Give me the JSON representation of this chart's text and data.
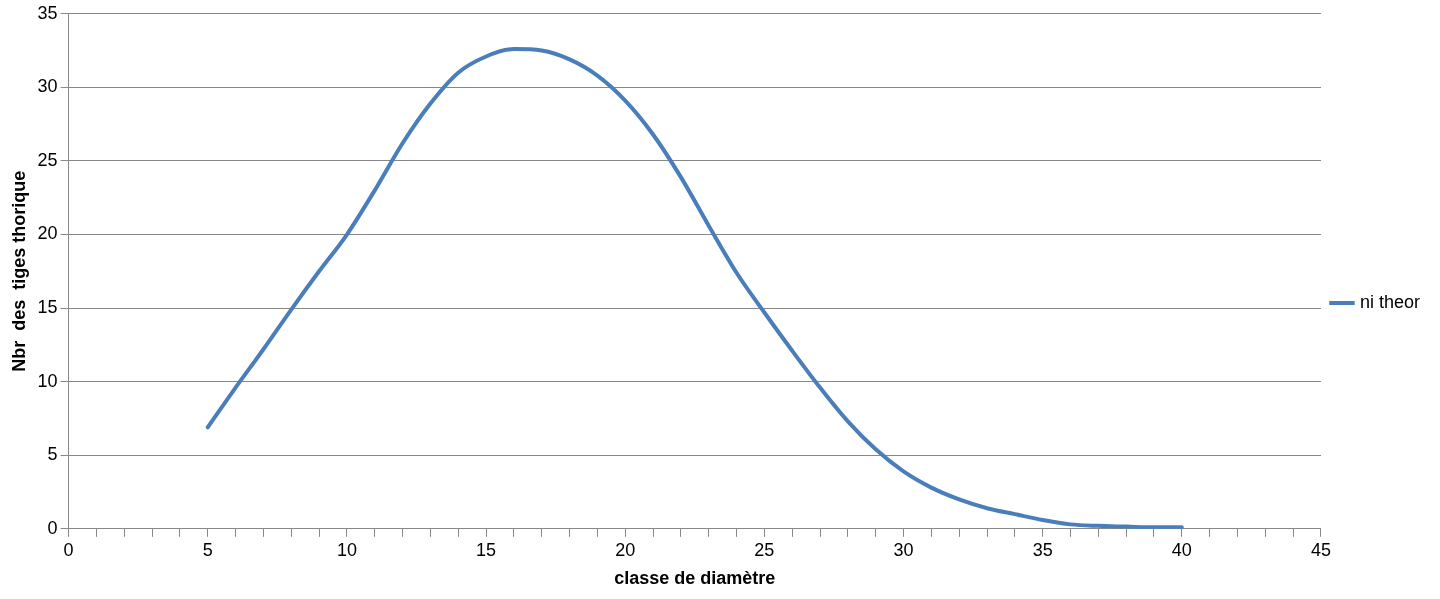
{
  "chart_data": {
    "type": "line",
    "xlabel": "classe de diamètre",
    "ylabel": "Nbr  des  tiges thorique",
    "xlim": [
      0,
      45
    ],
    "xticks": [
      0,
      {
        "value": 1,
        "label": null
      },
      {
        "value": 2,
        "label": null
      },
      {
        "value": 3,
        "label": null
      },
      {
        "value": 4,
        "label": null
      },
      5,
      {
        "value": 6,
        "label": null
      },
      {
        "value": 7,
        "label": null
      },
      {
        "value": 8,
        "label": null
      },
      {
        "value": 9,
        "label": null
      },
      10,
      {
        "value": 11,
        "label": null
      },
      {
        "value": 12,
        "label": null
      },
      {
        "value": 13,
        "label": null
      },
      {
        "value": 14,
        "label": null
      },
      15,
      {
        "value": 16,
        "label": null
      },
      {
        "value": 17,
        "label": null
      },
      {
        "value": 18,
        "label": null
      },
      {
        "value": 19,
        "label": null
      },
      20,
      {
        "value": 21,
        "label": null
      },
      {
        "value": 22,
        "label": null
      },
      {
        "value": 23,
        "label": null
      },
      {
        "value": 24,
        "label": null
      },
      25,
      {
        "value": 26,
        "label": null
      },
      {
        "value": 27,
        "label": null
      },
      {
        "value": 28,
        "label": null
      },
      {
        "value": 29,
        "label": null
      },
      30,
      {
        "value": 31,
        "label": null
      },
      {
        "value": 32,
        "label": null
      },
      {
        "value": 33,
        "label": null
      },
      {
        "value": 34,
        "label": null
      },
      35,
      {
        "value": 36,
        "label": null
      },
      {
        "value": 37,
        "label": null
      },
      {
        "value": 38,
        "label": null
      },
      {
        "value": 39,
        "label": null
      },
      40,
      {
        "value": 41,
        "label": null
      },
      {
        "value": 42,
        "label": null
      },
      {
        "value": 43,
        "label": null
      },
      {
        "value": 44,
        "label": null
      },
      45
    ],
    "ylim": [
      0,
      35
    ],
    "yticks": [
      0,
      5,
      10,
      15,
      20,
      25,
      30,
      35
    ],
    "grid": "y",
    "legend": "right",
    "marker": "none",
    "line_style": "solid",
    "x": [
      5,
      6,
      7,
      8,
      9,
      10,
      11,
      12,
      13,
      14,
      15,
      16,
      17,
      18,
      19,
      20,
      21,
      22,
      23,
      24,
      25,
      26,
      27,
      28,
      29,
      30,
      31,
      32,
      33,
      34,
      35,
      36,
      37,
      38,
      39,
      40
    ],
    "series": [
      {
        "name": "ni theor",
        "color": "#4a7ebb",
        "values": [
          6.9,
          9.6,
          12.2,
          14.9,
          17.5,
          20.0,
          23.0,
          26.2,
          28.9,
          31.0,
          32.1,
          32.6,
          32.5,
          31.9,
          30.8,
          29.1,
          26.8,
          23.9,
          20.6,
          17.4,
          14.7,
          12.1,
          9.6,
          7.3,
          5.4,
          3.9,
          2.8,
          2.0,
          1.4,
          1.0,
          0.6,
          0.3,
          0.2,
          0.15,
          0.1,
          0.1
        ]
      }
    ]
  }
}
